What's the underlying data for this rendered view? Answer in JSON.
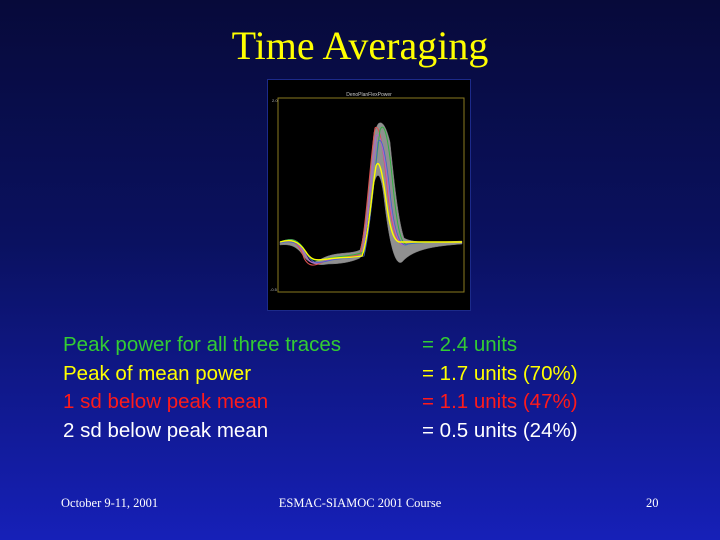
{
  "slide": {
    "title": "Time Averaging",
    "colors": {
      "title": "#ffff00",
      "green": "#33cc33",
      "yellow": "#ffff00",
      "red": "#ff1a1a",
      "white": "#ffffff",
      "background": "#0a1160"
    }
  },
  "figure": {
    "caption": "DenoPlanFlexPower",
    "y_top_tick": "2.0",
    "y_bottom_tick": "-0.5"
  },
  "stats": [
    {
      "label": "Peak power for all three traces",
      "value": "= 2.4 units",
      "color": "#33cc33"
    },
    {
      "label": "Peak of mean power",
      "value": "= 1.7 units (70%)",
      "color": "#ffff00"
    },
    {
      "label": "1 sd below peak  mean",
      "value": "= 1.1 units (47%)",
      "color": "#ff1a1a"
    },
    {
      "label": "2 sd below peak mean",
      "value": "= 0.5 units (24%)",
      "color": "#ffffff"
    }
  ],
  "footer": {
    "left": "October 9-11, 2001",
    "center": "ESMAC-SIAMOC 2001 Course",
    "right": "20"
  }
}
